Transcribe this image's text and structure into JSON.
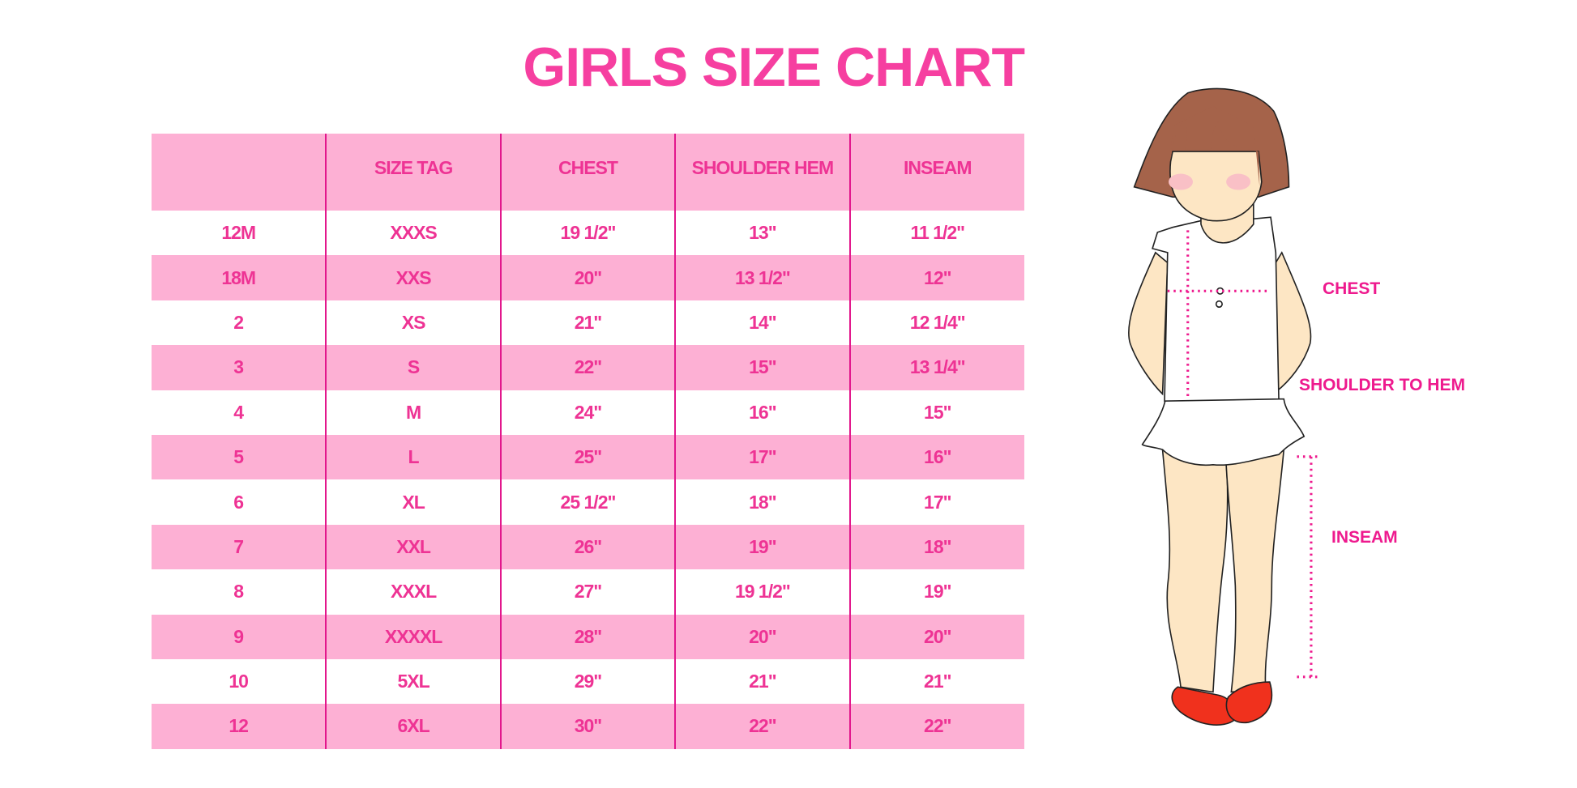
{
  "title": "GIRLS SIZE CHART",
  "table": {
    "headers": [
      "",
      "SIZE TAG",
      "CHEST",
      "SHOULDER HEM",
      "INSEAM"
    ],
    "rows": [
      [
        "12M",
        "XXXS",
        "19 1/2\"",
        "13\"",
        "11 1/2\""
      ],
      [
        "18M",
        "XXS",
        "20\"",
        "13 1/2\"",
        "12\""
      ],
      [
        "2",
        "XS",
        "21\"",
        "14\"",
        "12 1/4\""
      ],
      [
        "3",
        "S",
        "22\"",
        "15\"",
        "13 1/4\""
      ],
      [
        "4",
        "M",
        "24\"",
        "16\"",
        "15\""
      ],
      [
        "5",
        "L",
        "25\"",
        "17\"",
        "16\""
      ],
      [
        "6",
        "XL",
        "25 1/2\"",
        "18\"",
        "17\""
      ],
      [
        "7",
        "XXL",
        "26\"",
        "19\"",
        "18\""
      ],
      [
        "8",
        "XXXL",
        "27\"",
        "19 1/2\"",
        "19\""
      ],
      [
        "9",
        "XXXXL",
        "28\"",
        "20\"",
        "20\""
      ],
      [
        "10",
        "5XL",
        "29\"",
        "21\"",
        "21\""
      ],
      [
        "12",
        "6XL",
        "30\"",
        "22\"",
        "22\""
      ]
    ]
  },
  "figure": {
    "labels": {
      "chest": "CHEST",
      "shoulder_to_hem": "SHOULDER TO HEM",
      "inseam": "INSEAM"
    }
  },
  "colors": {
    "title": "#f63fa0",
    "row_pink": "#fdb0d4",
    "divider": "#e2178c",
    "measure": "#ee1a8e",
    "hair": "#a5634a",
    "skin": "#fde6c4",
    "shoes": "#f0311d"
  }
}
